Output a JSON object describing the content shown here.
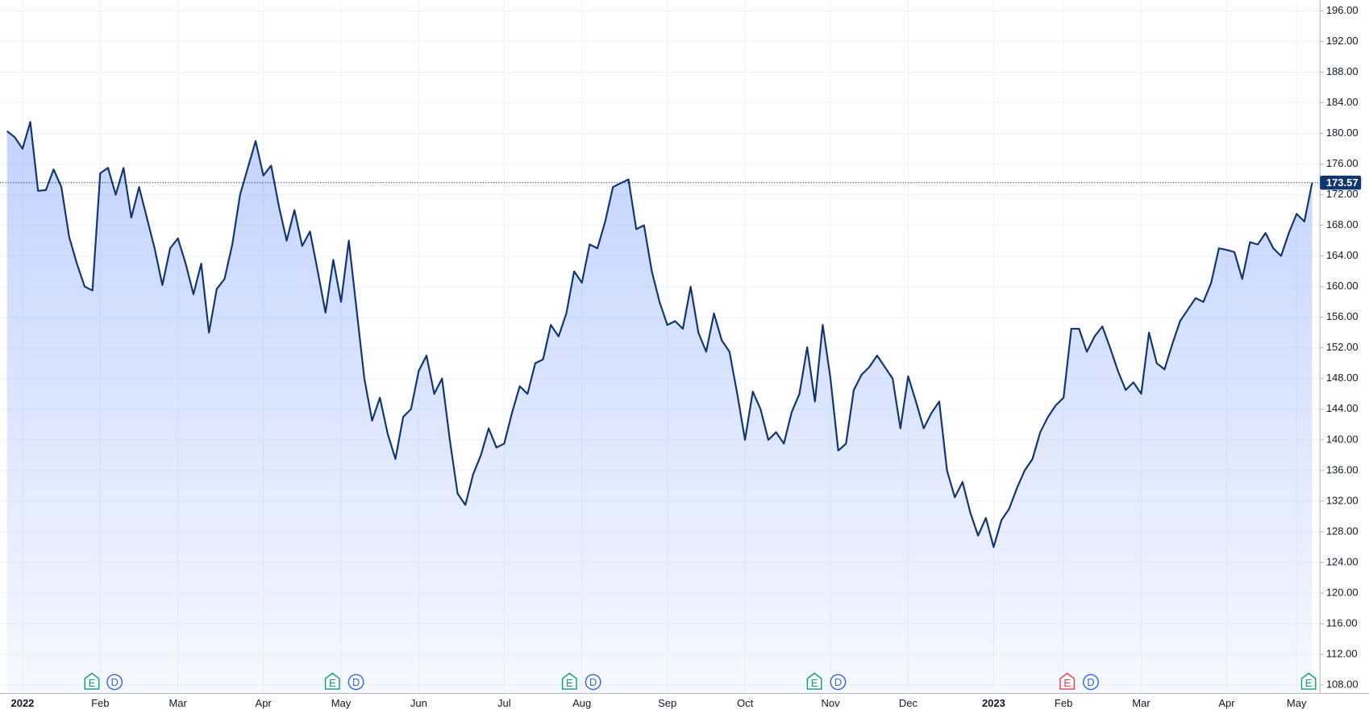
{
  "chart_data": {
    "type": "area",
    "color": "#0f3670",
    "fill": "#2962ff",
    "grid": true,
    "ylim": [
      106.9,
      197.4
    ],
    "yticks": [
      {
        "value": 108,
        "label": "108.00"
      },
      {
        "value": 112,
        "label": "112.00"
      },
      {
        "value": 116,
        "label": "116.00"
      },
      {
        "value": 120,
        "label": "120.00"
      },
      {
        "value": 124,
        "label": "124.00"
      },
      {
        "value": 128,
        "label": "128.00"
      },
      {
        "value": 132,
        "label": "132.00"
      },
      {
        "value": 136,
        "label": "136.00"
      },
      {
        "value": 140,
        "label": "140.00"
      },
      {
        "value": 144,
        "label": "144.00"
      },
      {
        "value": 148,
        "label": "148.00"
      },
      {
        "value": 152,
        "label": "152.00"
      },
      {
        "value": 156,
        "label": "156.00"
      },
      {
        "value": 160,
        "label": "160.00"
      },
      {
        "value": 164,
        "label": "164.00"
      },
      {
        "value": 168,
        "label": "168.00"
      },
      {
        "value": 172,
        "label": "172.00"
      },
      {
        "value": 176,
        "label": "176.00"
      },
      {
        "value": 180,
        "label": "180.00"
      },
      {
        "value": 184,
        "label": "184.00"
      },
      {
        "value": 188,
        "label": "188.00"
      },
      {
        "value": 192,
        "label": "192.00"
      },
      {
        "value": 196,
        "label": "196.00"
      }
    ],
    "categories": [
      null,
      null,
      "2022",
      null,
      null,
      null,
      null,
      null,
      null,
      null,
      null,
      null,
      "Feb",
      null,
      null,
      null,
      null,
      null,
      null,
      null,
      null,
      null,
      "Mar",
      null,
      null,
      null,
      null,
      null,
      null,
      null,
      null,
      null,
      null,
      "Apr",
      null,
      null,
      null,
      null,
      null,
      null,
      null,
      null,
      null,
      "May",
      null,
      null,
      null,
      null,
      null,
      null,
      null,
      null,
      null,
      "Jun",
      null,
      null,
      null,
      null,
      null,
      null,
      null,
      null,
      null,
      null,
      "Jul",
      null,
      null,
      null,
      null,
      null,
      null,
      null,
      null,
      null,
      "Aug",
      null,
      null,
      null,
      null,
      null,
      null,
      null,
      null,
      null,
      null,
      "Sep",
      null,
      null,
      null,
      null,
      null,
      null,
      null,
      null,
      null,
      "Oct",
      null,
      null,
      null,
      null,
      null,
      null,
      null,
      null,
      null,
      null,
      "Nov",
      null,
      null,
      null,
      null,
      null,
      null,
      null,
      null,
      null,
      "Dec",
      null,
      null,
      null,
      null,
      null,
      null,
      null,
      null,
      null,
      null,
      "2023",
      null,
      null,
      null,
      null,
      null,
      null,
      null,
      null,
      "Feb",
      null,
      null,
      null,
      null,
      null,
      null,
      null,
      null,
      null,
      "Mar",
      null,
      null,
      null,
      null,
      null,
      null,
      null,
      null,
      null,
      null,
      "Apr",
      null,
      null,
      null,
      null,
      null,
      null,
      null,
      null,
      "May",
      null,
      null
    ],
    "values": [
      180.3,
      179.5,
      178,
      181.5,
      172.5,
      172.6,
      175.3,
      173,
      166.5,
      163,
      160,
      159.5,
      174.8,
      175.5,
      172,
      175.5,
      169,
      173,
      169,
      165,
      160.2,
      165,
      166.3,
      163,
      159,
      163,
      154,
      159.7,
      161,
      165.5,
      172,
      175.5,
      179,
      174.5,
      175.8,
      170.5,
      166,
      170,
      165.3,
      167.2,
      162,
      156.6,
      163.5,
      158,
      166,
      157,
      148,
      142.5,
      145.5,
      140.8,
      137.5,
      143,
      144,
      149,
      151,
      146,
      148,
      140,
      133,
      131.5,
      135.5,
      138,
      141.5,
      139,
      139.5,
      143.5,
      147,
      146,
      150,
      150.5,
      155,
      153.5,
      156.5,
      162,
      160.5,
      165.5,
      165,
      168.5,
      173,
      173.5,
      174,
      167.5,
      168,
      162,
      158,
      155,
      155.5,
      154.5,
      160,
      154,
      151.5,
      156.5,
      153,
      151.5,
      146,
      140,
      146.3,
      144,
      140,
      141,
      139.5,
      143.6,
      146,
      152.1,
      145,
      155,
      148,
      138.6,
      139.5,
      146.5,
      148.5,
      149.5,
      151,
      149.5,
      148,
      141.5,
      148.3,
      145,
      141.5,
      143.5,
      145,
      136,
      132.5,
      134.5,
      130.5,
      127.5,
      129.8,
      126,
      129.5,
      131,
      133.7,
      136,
      137.5,
      141,
      143,
      144.5,
      145.5,
      154.5,
      154.5,
      151.5,
      153.5,
      154.8,
      152,
      149,
      146.5,
      147.5,
      146,
      154,
      150,
      149.2,
      152.5,
      155.5,
      157,
      158.5,
      158,
      160.5,
      165,
      164.8,
      164.5,
      161,
      165.8,
      165.5,
      167,
      165,
      164,
      167,
      169.5,
      168.5,
      173.57
    ],
    "events": [
      {
        "earnings": "E",
        "dividend": "D"
      },
      {
        "earnings": "E",
        "dividend": "D"
      },
      {
        "earnings": "E",
        "dividend": "D"
      },
      {
        "earnings": "E",
        "dividend": "D"
      },
      {
        "earnings": "E",
        "dividend": "D"
      },
      {
        "earnings": "E"
      }
    ]
  }
}
